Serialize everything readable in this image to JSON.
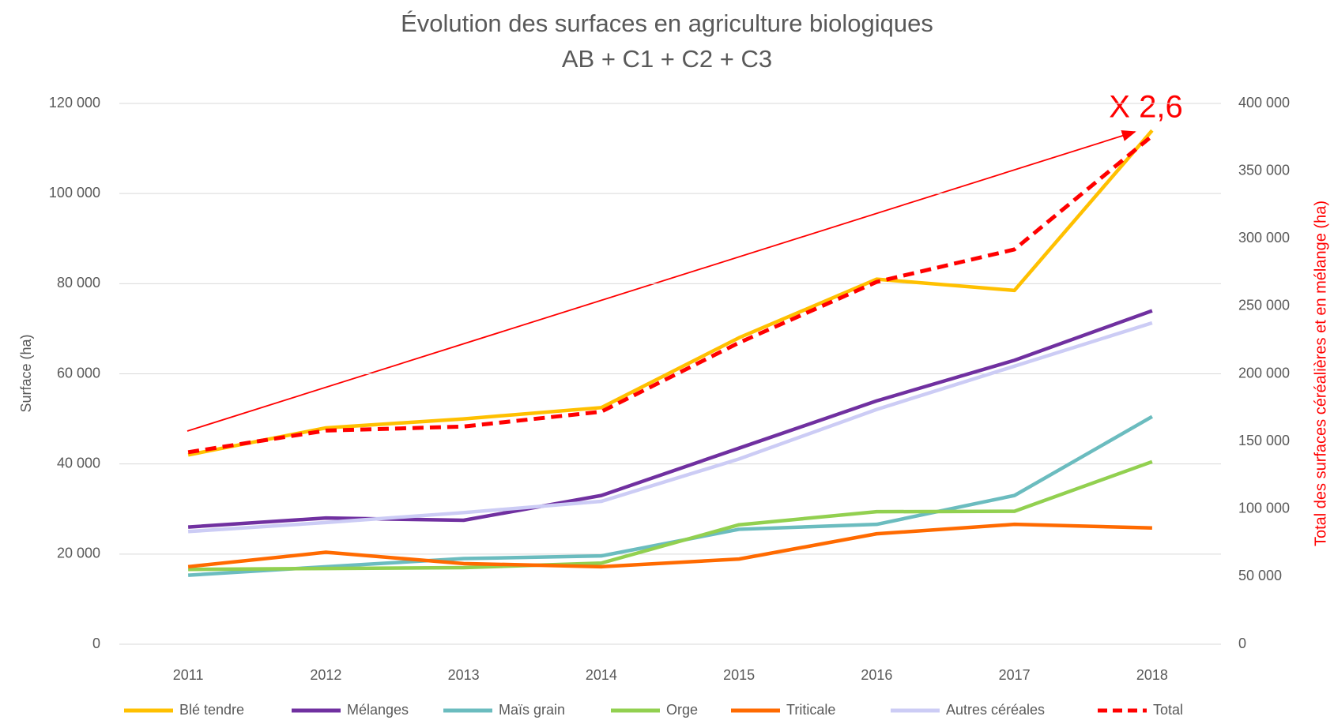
{
  "chart_data": {
    "type": "line",
    "title": "Évolution des surfaces en agriculture biologiques",
    "subtitle": "AB + C1 + C2 + C3",
    "y_label": "Surface (ha)",
    "y2_label": "Total des surfaces céréalières et en mélange (ha)",
    "annotation": "X 2,6",
    "categories": [
      "2011",
      "2012",
      "2013",
      "2014",
      "2015",
      "2016",
      "2017",
      "2018"
    ],
    "ylim": [
      0,
      120000
    ],
    "yticks": [
      0,
      {
        "value": 20000,
        "label": "20 000"
      },
      {
        "value": 40000,
        "label": "40 000"
      },
      {
        "value": 60000,
        "label": "60 000"
      },
      {
        "value": 80000,
        "label": "80 000"
      },
      {
        "value": 100000,
        "label": "100 000"
      },
      {
        "value": 120000,
        "label": "120 000"
      }
    ],
    "y2lim": [
      0,
      400000
    ],
    "y2ticks": [
      0,
      {
        "value": 50000,
        "label": "50 000"
      },
      {
        "value": 100000,
        "label": "100 000"
      },
      {
        "value": 150000,
        "label": "150 000"
      },
      {
        "value": 200000,
        "label": "200 000"
      },
      {
        "value": 250000,
        "label": "250 000"
      },
      {
        "value": 300000,
        "label": "300 000"
      },
      {
        "value": 350000,
        "label": "350 000"
      },
      {
        "value": 400000,
        "label": "400 000"
      }
    ],
    "grid": true,
    "legend": "bottom",
    "series": [
      {
        "name": "Blé tendre",
        "color": "#ffc000",
        "values": [
          42000,
          48000,
          50000,
          52500,
          68000,
          81000,
          78500,
          114000
        ]
      },
      {
        "name": "Mélanges",
        "color": "#7030a0",
        "values": [
          26000,
          28000,
          27500,
          33000,
          43500,
          54000,
          63000,
          74000
        ]
      },
      {
        "name": "Maïs grain",
        "color": "#6bbcbf",
        "values": [
          15300,
          17200,
          19000,
          19600,
          25500,
          26600,
          33000,
          50500
        ]
      },
      {
        "name": "Orge",
        "color": "#92d050",
        "values": [
          16600,
          16800,
          17000,
          18000,
          26500,
          29400,
          29500,
          40500
        ]
      },
      {
        "name": "Triticale",
        "color": "#ff6a00",
        "values": [
          17200,
          20400,
          17900,
          17200,
          18900,
          24500,
          26600,
          25800
        ]
      },
      {
        "name": "Autres céréales",
        "color": "#ccccf5",
        "values": [
          25000,
          27000,
          29200,
          31700,
          41100,
          52100,
          61700,
          71300
        ]
      },
      {
        "name": "Total",
        "color": "#ff0000",
        "dashed": true,
        "axis": "y2",
        "values": [
          142000,
          158000,
          161000,
          172000,
          223000,
          268000,
          292000,
          376000
        ]
      }
    ]
  }
}
